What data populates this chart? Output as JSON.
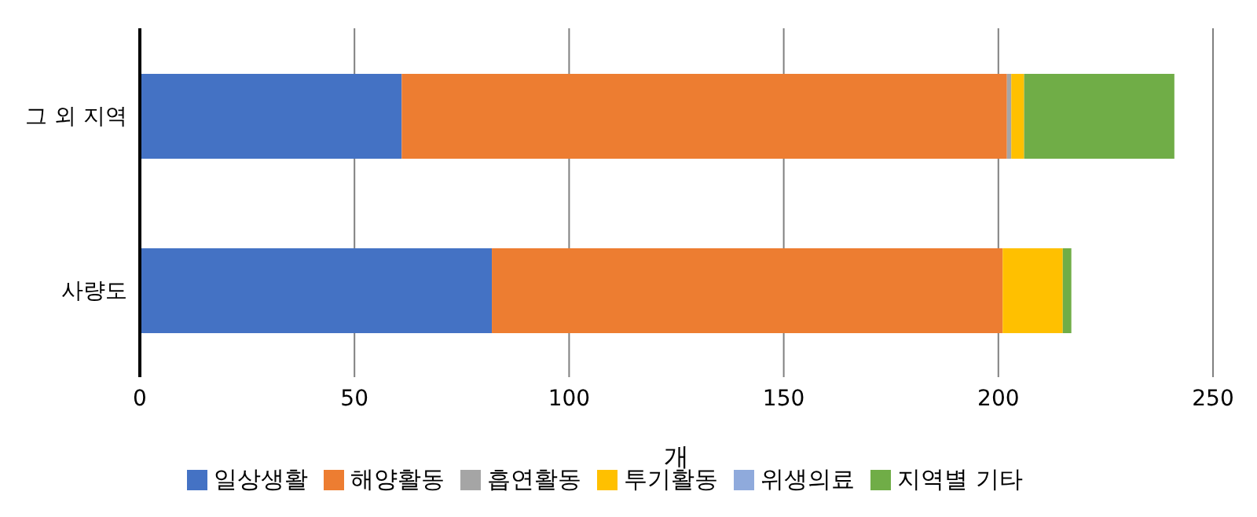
{
  "chart_data": {
    "type": "bar",
    "orientation": "horizontal",
    "stacked": true,
    "categories": [
      "그 외 지역",
      "사량도"
    ],
    "xlabel": "개",
    "series": [
      {
        "name": "일상생활",
        "color": "#4472c4",
        "values": [
          61,
          82
        ]
      },
      {
        "name": "해양활동",
        "color": "#ed7d31",
        "values": [
          141,
          119
        ]
      },
      {
        "name": "흡연활동",
        "color": "#a5a5a5",
        "values": [
          1,
          0
        ]
      },
      {
        "name": "투기활동",
        "color": "#ffc000",
        "values": [
          3,
          14
        ]
      },
      {
        "name": "위생의료",
        "color": "#8faadc",
        "values": [
          0,
          0
        ]
      },
      {
        "name": "지역별 기타",
        "color": "#70ad47",
        "values": [
          35,
          2
        ]
      }
    ],
    "xlim": [
      0,
      250
    ],
    "xticks": [
      0,
      50,
      100,
      150,
      200,
      250
    ],
    "grid": "x",
    "legend": "bottom"
  }
}
